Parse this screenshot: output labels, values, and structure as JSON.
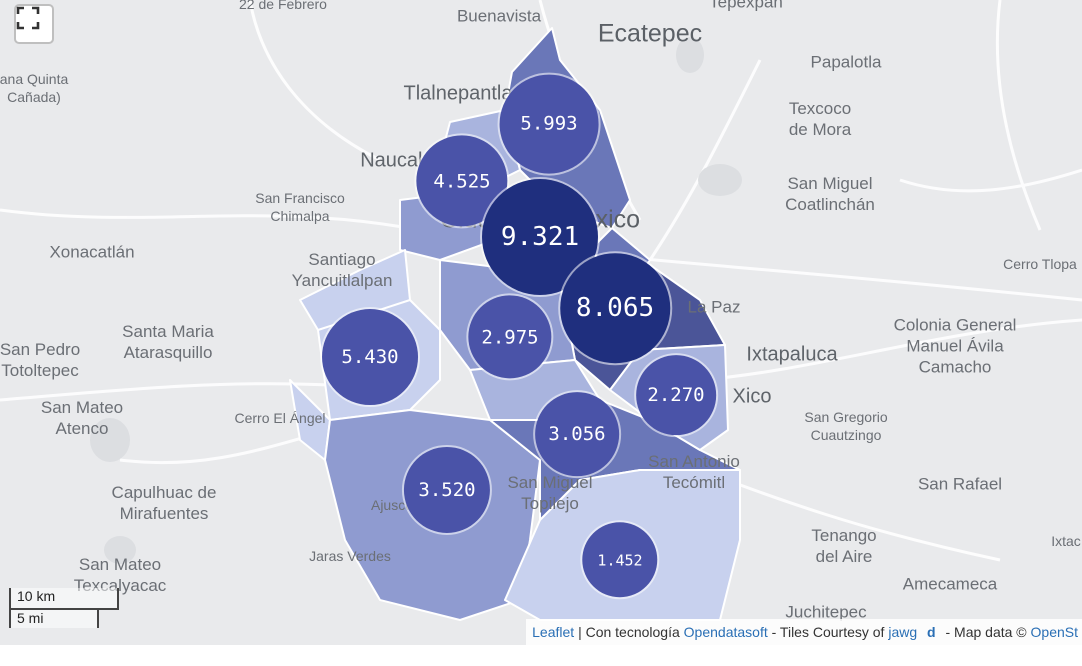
{
  "controls": {
    "fullscreen_icon": "fullscreen-icon",
    "scale_km": "10 km",
    "scale_mi": "5 mi"
  },
  "places": [
    {
      "text": "22 de Febrero",
      "cls": "small"
    },
    {
      "text": "Buenavista",
      "cls": ""
    },
    {
      "text": "Ecatepec",
      "cls": "big"
    },
    {
      "text": "Tepexpan",
      "cls": ""
    },
    {
      "text": "ana Quinta\nCañada)",
      "cls": "small"
    },
    {
      "text": "Tlalnepantla",
      "cls": "med"
    },
    {
      "text": "Papalotla",
      "cls": ""
    },
    {
      "text": "Texcoco\nde Mora",
      "cls": ""
    },
    {
      "text": "Naucalpan",
      "cls": "med"
    },
    {
      "text": "San Francisco\nChimalpa",
      "cls": "small"
    },
    {
      "text": "Ciudad de México",
      "cls": "big"
    },
    {
      "text": "San Miguel\nCoatlinchán",
      "cls": ""
    },
    {
      "text": "Xonacatlán",
      "cls": ""
    },
    {
      "text": "Santiago\nYancuitlalpan",
      "cls": ""
    },
    {
      "text": "Cerro Tlopa",
      "cls": "small"
    },
    {
      "text": "La Paz",
      "cls": ""
    },
    {
      "text": "Colonia General\nManuel Ávila\nCamacho",
      "cls": ""
    },
    {
      "text": "Santa Maria\nAtarasquillo",
      "cls": ""
    },
    {
      "text": "San Pedro\nTotoltepec",
      "cls": ""
    },
    {
      "text": "Ixtapaluca",
      "cls": "med"
    },
    {
      "text": "Xico",
      "cls": "med"
    },
    {
      "text": "San Mateo\nAtenco",
      "cls": ""
    },
    {
      "text": "Cerro El Ángel",
      "cls": "small"
    },
    {
      "text": "San Gregorio\nCuautzingo",
      "cls": "small"
    },
    {
      "text": "San Antonio\nTecómitl",
      "cls": ""
    },
    {
      "text": "San Miguel\nTopilejo",
      "cls": ""
    },
    {
      "text": "San Rafael",
      "cls": ""
    },
    {
      "text": "Capulhuac de\nMirafuentes",
      "cls": ""
    },
    {
      "text": "Ajusco",
      "cls": "small"
    },
    {
      "text": "Tenango\ndel Aire",
      "cls": ""
    },
    {
      "text": "Ixtac",
      "cls": "small"
    },
    {
      "text": "Jaras Verdes",
      "cls": "small"
    },
    {
      "text": "San Mateo\nTexcalyacac",
      "cls": ""
    },
    {
      "text": "Amecameca",
      "cls": ""
    },
    {
      "text": "Juchitepec",
      "cls": ""
    }
  ],
  "clusters": [
    {
      "label": "5.993",
      "value": 5993
    },
    {
      "label": "4.525",
      "value": 4525
    },
    {
      "label": "9.321",
      "value": 9321
    },
    {
      "label": "8.065",
      "value": 8065
    },
    {
      "label": "2.975",
      "value": 2975
    },
    {
      "label": "5.430",
      "value": 5430
    },
    {
      "label": "2.270",
      "value": 2270
    },
    {
      "label": "3.056",
      "value": 3056
    },
    {
      "label": "3.520",
      "value": 3520
    },
    {
      "label": "1.452",
      "value": 1452
    }
  ],
  "colors": {
    "land": "#e9eaec",
    "cluster_dark": "#1f2f7e",
    "cluster_light": "#4a53a8",
    "region_shades": [
      "#c8d1ee",
      "#a9b4de",
      "#8f9bd0",
      "#6a77b8",
      "#4b5598"
    ]
  },
  "attribution": {
    "leaflet": "Leaflet",
    "sep1": "| Con tecnología",
    "opendatasoft": "Opendatasoft",
    "sep2": "- Tiles Courtesy of",
    "jawg": "jawg",
    "jawg_logo": "d",
    "sep3": "- Map data ©",
    "osm": "OpenSt"
  }
}
